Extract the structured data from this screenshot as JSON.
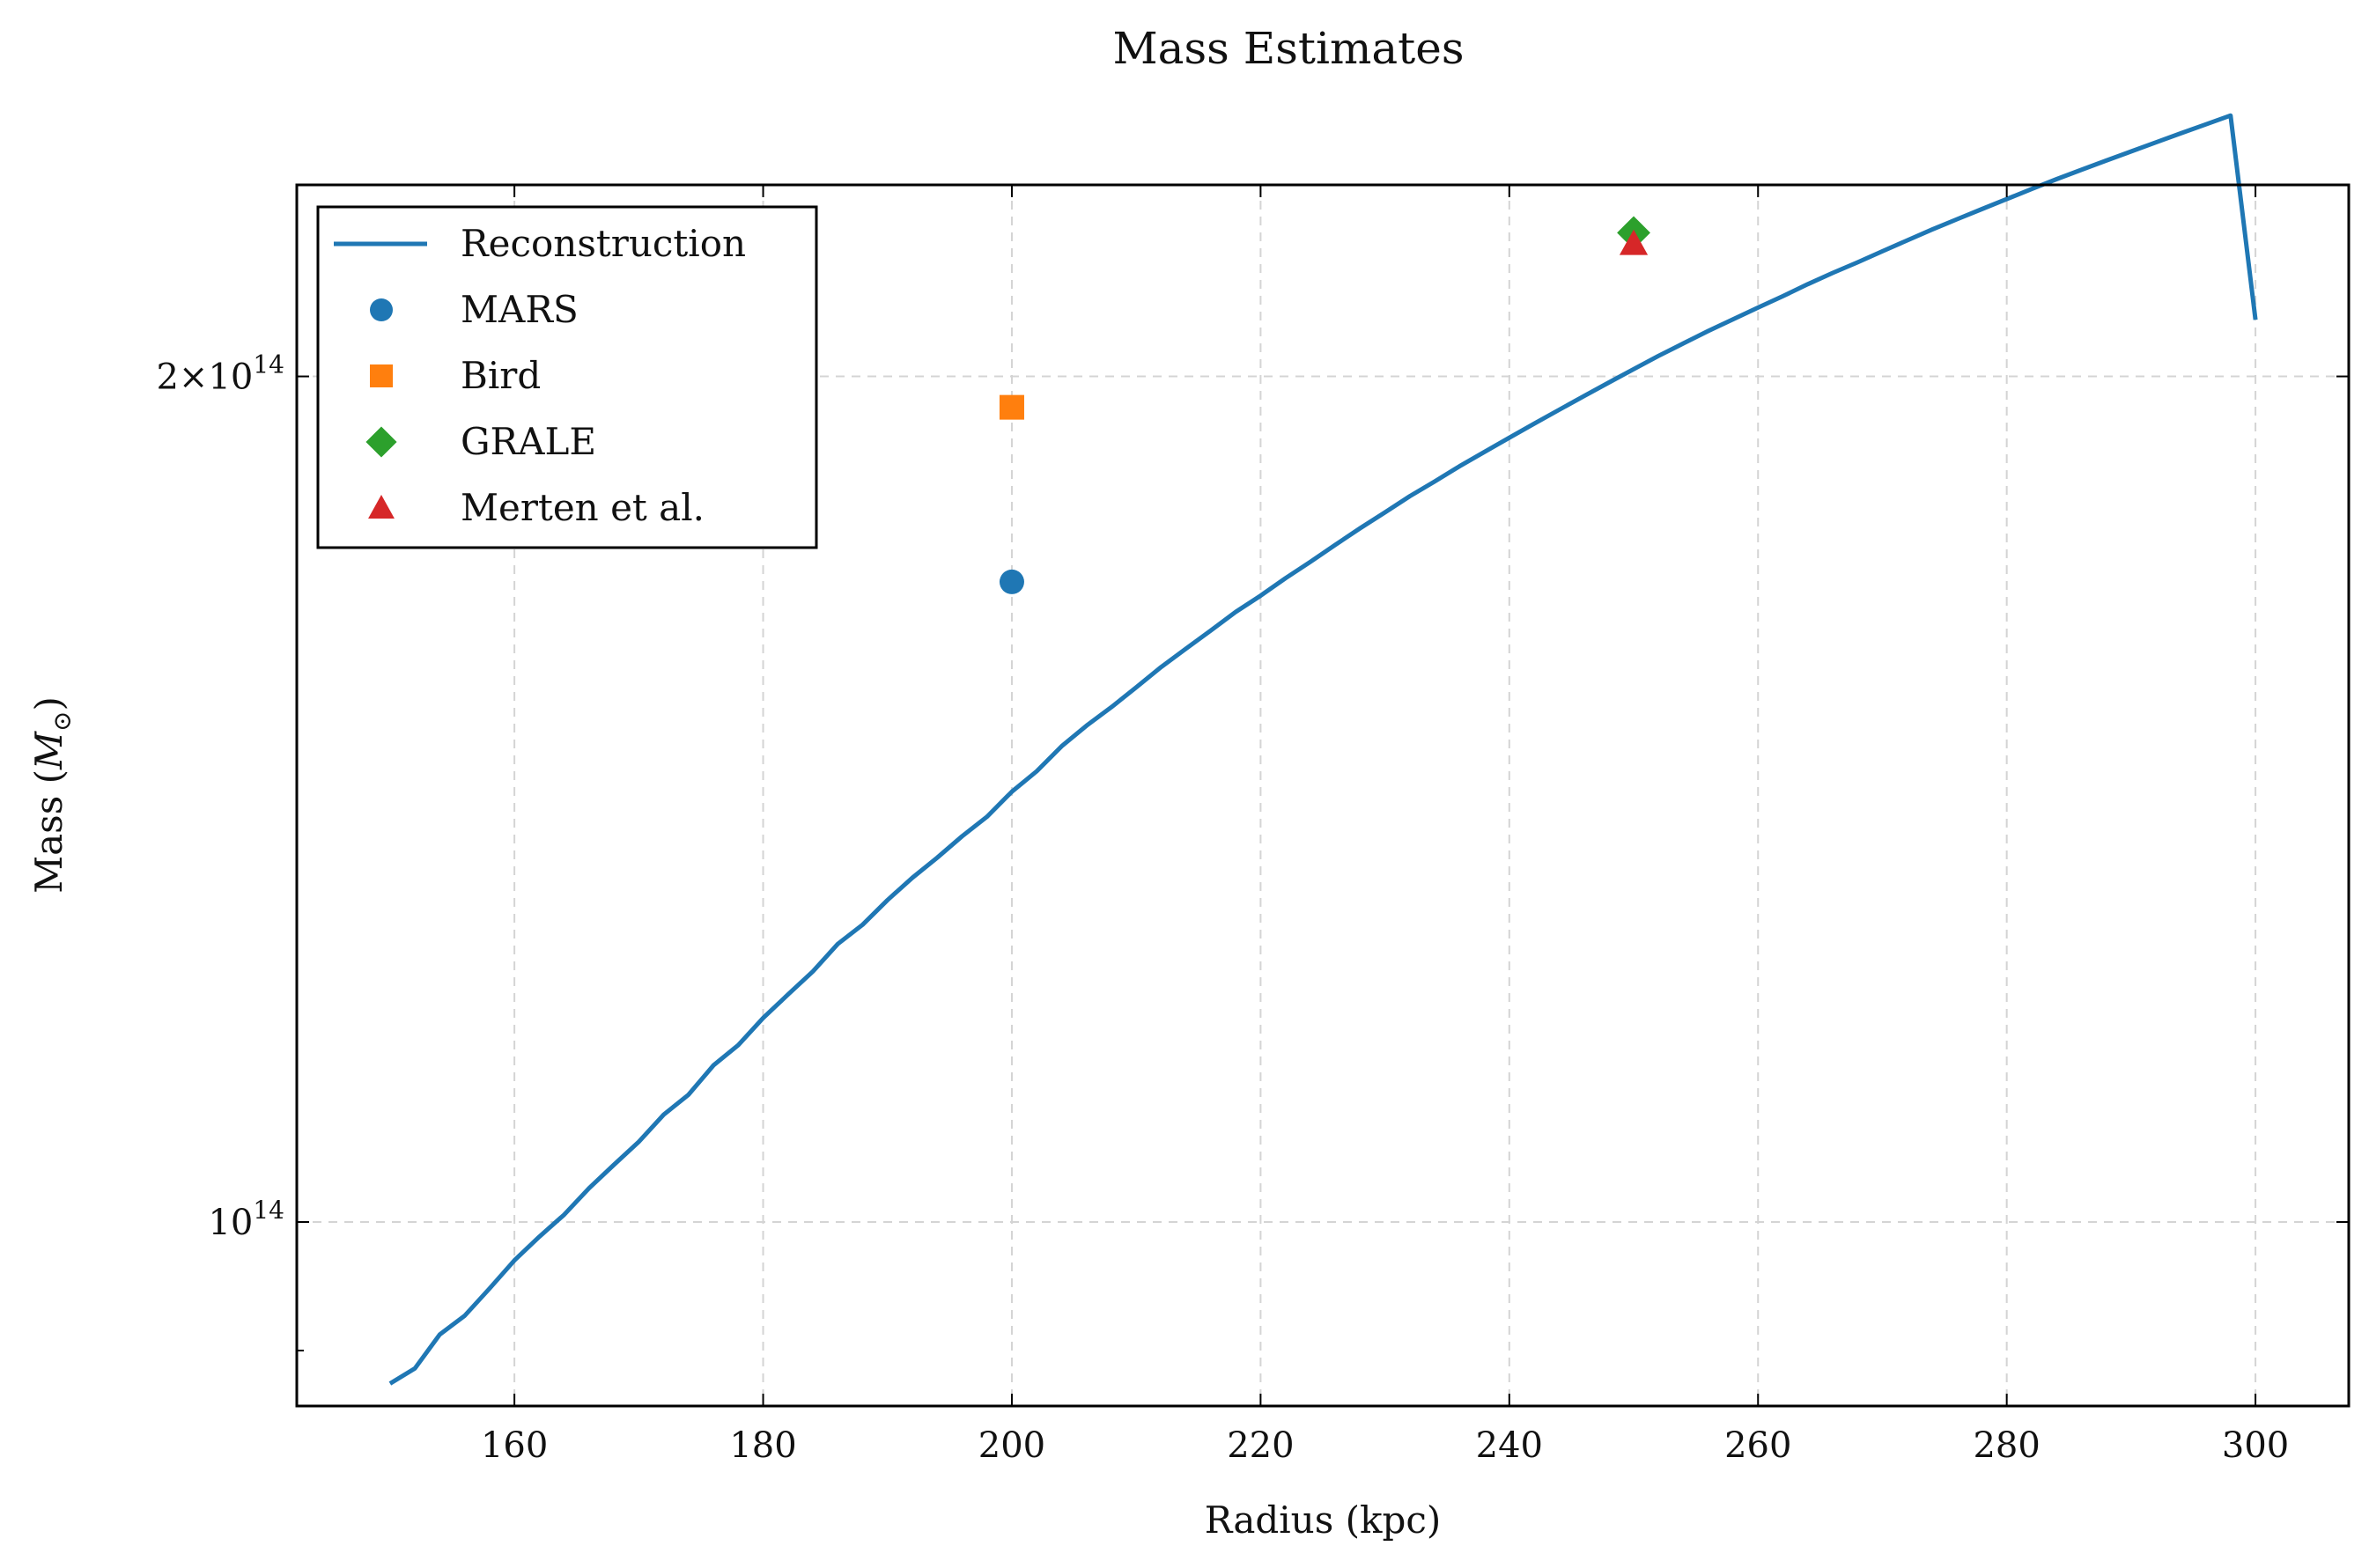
{
  "chart_data": {
    "type": "line",
    "title": "Mass Estimates",
    "xlabel": "Radius (kpc)",
    "ylabel_text": "Mass (",
    "ylabel_symbol": "M",
    "ylabel_subscript": "⊙",
    "ylabel_close": ")",
    "xlim": [
      142.5,
      307.5
    ],
    "ylim": [
      86000000000000,
      234000000000000
    ],
    "yscale": "log",
    "grid": true,
    "legend_position": "top-left",
    "xticks": [
      160,
      180,
      200,
      220,
      240,
      260,
      280,
      300
    ],
    "xtick_labels": [
      "160",
      "180",
      "200",
      "220",
      "240",
      "260",
      "280",
      "300"
    ],
    "yticks": [
      {
        "value": 100000000000000,
        "base": "10",
        "exp": "14",
        "prefix": ""
      },
      {
        "value": 200000000000000,
        "base": "10",
        "exp": "14",
        "prefix": "2×"
      }
    ],
    "series": [
      {
        "name": "Reconstruction",
        "kind": "line",
        "color": "#1f77b4",
        "x": [
          150,
          152,
          154,
          156,
          158,
          160,
          162,
          164,
          166,
          168,
          170,
          172,
          174,
          176,
          178,
          180,
          182,
          184,
          186,
          188,
          190,
          192,
          194,
          196,
          198,
          200,
          202,
          204,
          206,
          208,
          210,
          212,
          214,
          216,
          218,
          220,
          222,
          224,
          226,
          228,
          230,
          232,
          234,
          236,
          238,
          240,
          242,
          244,
          246,
          248,
          250,
          252,
          254,
          256,
          258,
          260,
          262,
          264,
          266,
          268,
          270,
          272,
          274,
          276,
          278,
          280,
          282,
          284,
          286,
          288,
          290,
          292,
          294,
          296,
          298,
          300
        ],
        "y": [
          87600000000000.0,
          88700000000000.0,
          91200000000000.0,
          92600000000000.0,
          94700000000000.0,
          96900000000000.0,
          98800000000000.0,
          100600000000000.0,
          102800000000000.0,
          104800000000000.0,
          106800000000000.0,
          109200000000000.0,
          111000000000000.0,
          113700000000000.0,
          115600000000000.0,
          118200000000000.0,
          120500000000000.0,
          122800000000000.0,
          125600000000000.0,
          127600000000000.0,
          130200000000000.0,
          132600000000000.0,
          134800000000000.0,
          137200000000000.0,
          139400000000000.0,
          142300000000000.0,
          144700000000000.0,
          147700000000000.0,
          150200000000000.0,
          152500000000000.0,
          155000000000000.0,
          157600000000000.0,
          160000000000000.0,
          162400000000000.0,
          164900000000000.0,
          167100000000000.0,
          169500000000000.0,
          171800000000000.0,
          174200000000000.0,
          176600000000000.0,
          178900000000000.0,
          181300000000000.0,
          183500000000000.0,
          185800000000000.0,
          188000000000000.0,
          190200000000000.0,
          192400000000000.0,
          194600000000000.0,
          196800000000000.0,
          199000000000000.0,
          201200000000000.0,
          203400000000000.0,
          205500000000000.0,
          207600000000000.0,
          209600000000000.0,
          211600000000000.0,
          213600000000000.0,
          215700000000000.0,
          217700000000000.0,
          219600000000000.0,
          221600000000000.0,
          223600000000000.0,
          225600000000000.0,
          227500000000000.0,
          229400000000000.0,
          231300000000000.0,
          233200000000000.0,
          235100000000000.0,
          236900000000000.0,
          238700000000000.0,
          240500000000000.0,
          242300000000000.0,
          244100000000000.0,
          245900000000000.0,
          247700000000000.0,
          209500000000000.0
        ]
      },
      {
        "name": "MARS",
        "kind": "scatter",
        "marker": "circle",
        "color": "#1f77b4",
        "x": [
          200
        ],
        "y": [
          169000000000000.0
        ]
      },
      {
        "name": "Bird",
        "kind": "scatter",
        "marker": "square",
        "color": "#ff7f0e",
        "x": [
          200
        ],
        "y": [
          195000000000000.0
        ]
      },
      {
        "name": "GRALE",
        "kind": "scatter",
        "marker": "diamond",
        "color": "#2ca02c",
        "x": [
          250
        ],
        "y": [
          225000000000000.0
        ]
      },
      {
        "name": "Merten et al.",
        "kind": "scatter",
        "marker": "triangle",
        "color": "#d62728",
        "x": [
          250
        ],
        "y": [
          223000000000000.0
        ]
      }
    ]
  }
}
